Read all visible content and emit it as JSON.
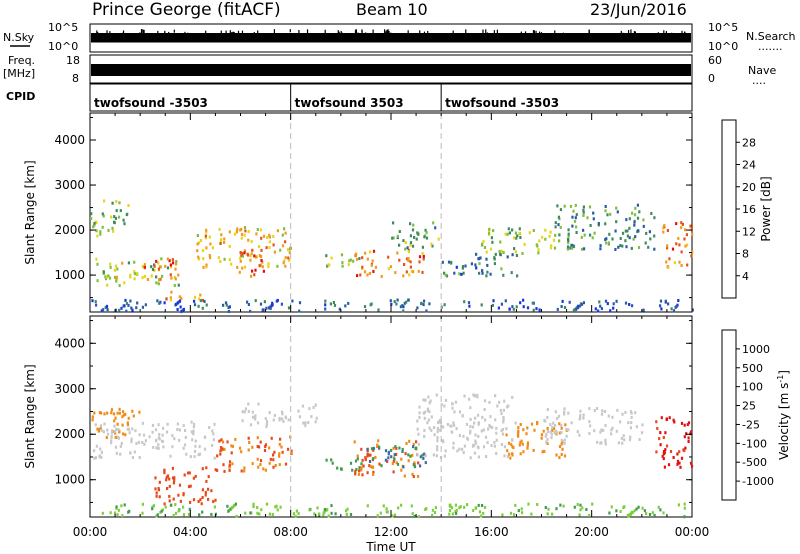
{
  "header": {
    "station": "Prince George (fitACF)",
    "beam": "Beam 10",
    "date": "23/Jun/2016"
  },
  "strip_labels": {
    "nsky": "N.Sky",
    "nsearch": "N.Search",
    "nsearch_dots": ".......",
    "freq_top": "Freq.",
    "freq_unit": "[MHz]",
    "nave": "Nave",
    "nave_dots": "....",
    "cpid": "CPID"
  },
  "strip_ticks": {
    "noise_left": [
      "10^5",
      "10^0"
    ],
    "noise_right": [
      "10^5",
      "10^0"
    ],
    "freq_left": [
      "18",
      "8"
    ],
    "freq_right": [
      "60",
      "0"
    ]
  },
  "cpid_segments": [
    {
      "label": "twofsound -3503",
      "start_h": 0.0
    },
    {
      "label": "twofsound 3503",
      "start_h": 8.0
    },
    {
      "label": "twofsound -3503",
      "start_h": 14.0
    }
  ],
  "chart_data": [
    {
      "type": "heatmap",
      "ylabel": "Slant Range [km]",
      "ylim": [
        180,
        4600
      ],
      "yticks": [
        "1000",
        "2000",
        "3000",
        "4000"
      ],
      "xlim_h": [
        0,
        24
      ],
      "colorbar": {
        "label": "Power [dB]",
        "ticks": [
          "4",
          "8",
          "12",
          "16",
          "20",
          "24",
          "28"
        ],
        "colors": [
          "#1832e6",
          "#2a5aa8",
          "#3e8a5e",
          "#7fbf3c",
          "#e8d41c",
          "#f29a1c",
          "#e85218",
          "#e01010"
        ]
      },
      "regions": [
        {
          "h": [
            0.0,
            1.5
          ],
          "r": [
            1900,
            2700
          ],
          "v": 14
        },
        {
          "h": [
            0.2,
            3.5
          ],
          "r": [
            800,
            1400
          ],
          "v": 16
        },
        {
          "h": [
            2.0,
            3.5
          ],
          "r": [
            900,
            1400
          ],
          "v": 26
        },
        {
          "h": [
            3.0,
            4.5
          ],
          "r": [
            450,
            700
          ],
          "v": 22
        },
        {
          "h": [
            4.2,
            8.0
          ],
          "r": [
            1200,
            2100
          ],
          "v": 20
        },
        {
          "h": [
            5.8,
            7.0
          ],
          "r": [
            1000,
            1600
          ],
          "v": 27
        },
        {
          "h": [
            9.3,
            10.8
          ],
          "r": [
            1200,
            1500
          ],
          "v": 14
        },
        {
          "h": [
            10.5,
            13.3
          ],
          "r": [
            1000,
            1600
          ],
          "v": 24
        },
        {
          "h": [
            12.0,
            14.0
          ],
          "r": [
            1600,
            2200
          ],
          "v": 12
        },
        {
          "h": [
            14.0,
            17.0
          ],
          "r": [
            1000,
            1500
          ],
          "v": 8
        },
        {
          "h": [
            15.5,
            18.5
          ],
          "r": [
            1500,
            2100
          ],
          "v": 14
        },
        {
          "h": [
            18.5,
            22.5
          ],
          "r": [
            1600,
            2600
          ],
          "v": 10
        },
        {
          "h": [
            22.8,
            24.0
          ],
          "r": [
            1200,
            2200
          ],
          "v": 24
        },
        {
          "h": [
            0.0,
            24.0
          ],
          "r": [
            220,
            480
          ],
          "v": 6
        }
      ]
    },
    {
      "type": "heatmap",
      "ylabel": "Slant Range [km]",
      "ylim": [
        180,
        4600
      ],
      "yticks": [
        "1000",
        "2000",
        "3000",
        "4000"
      ],
      "xlim_h": [
        0,
        24
      ],
      "xticks": [
        "00:00",
        "04:00",
        "08:00",
        "12:00",
        "16:00",
        "20:00",
        "00:00"
      ],
      "xlabel": "Time UT",
      "colorbar": {
        "label": "Velocity [m s^-1]",
        "ticks": [
          "1000",
          "500",
          "100",
          "25",
          "-25",
          "-100",
          "-500",
          "-1000"
        ],
        "colors": [
          "#2040c0",
          "#3a6aa8",
          "#3f9a4e",
          "#7ccf3a",
          "#c8c8c8",
          "#f0c020",
          "#f08a18",
          "#e84818",
          "#e01010"
        ]
      },
      "regions": [
        {
          "h": [
            0.0,
            2.0
          ],
          "r": [
            1900,
            2600
          ],
          "v": -100
        },
        {
          "h": [
            0.0,
            5.0
          ],
          "r": [
            1500,
            2300
          ],
          "v": 0
        },
        {
          "h": [
            2.5,
            5.0
          ],
          "r": [
            500,
            1300
          ],
          "v": -500
        },
        {
          "h": [
            5.0,
            8.0
          ],
          "r": [
            1200,
            2000
          ],
          "v": -300
        },
        {
          "h": [
            6.0,
            9.0
          ],
          "r": [
            2200,
            2700
          ],
          "v": 0
        },
        {
          "h": [
            9.3,
            10.8
          ],
          "r": [
            1200,
            1500
          ],
          "v": 100
        },
        {
          "h": [
            10.5,
            13.3
          ],
          "r": [
            1100,
            1900
          ],
          "v": -300
        },
        {
          "h": [
            11.0,
            13.5
          ],
          "r": [
            1300,
            1800
          ],
          "v": 300
        },
        {
          "h": [
            13.0,
            17.0
          ],
          "r": [
            1500,
            2900
          ],
          "v": 0
        },
        {
          "h": [
            16.5,
            19.0
          ],
          "r": [
            1500,
            2300
          ],
          "v": -150
        },
        {
          "h": [
            18.0,
            22.0
          ],
          "r": [
            1800,
            2600
          ],
          "v": 0
        },
        {
          "h": [
            22.5,
            24.0
          ],
          "r": [
            1300,
            2400
          ],
          "v": -1000
        },
        {
          "h": [
            0.0,
            24.0
          ],
          "r": [
            220,
            500
          ],
          "v": 50
        }
      ]
    }
  ]
}
